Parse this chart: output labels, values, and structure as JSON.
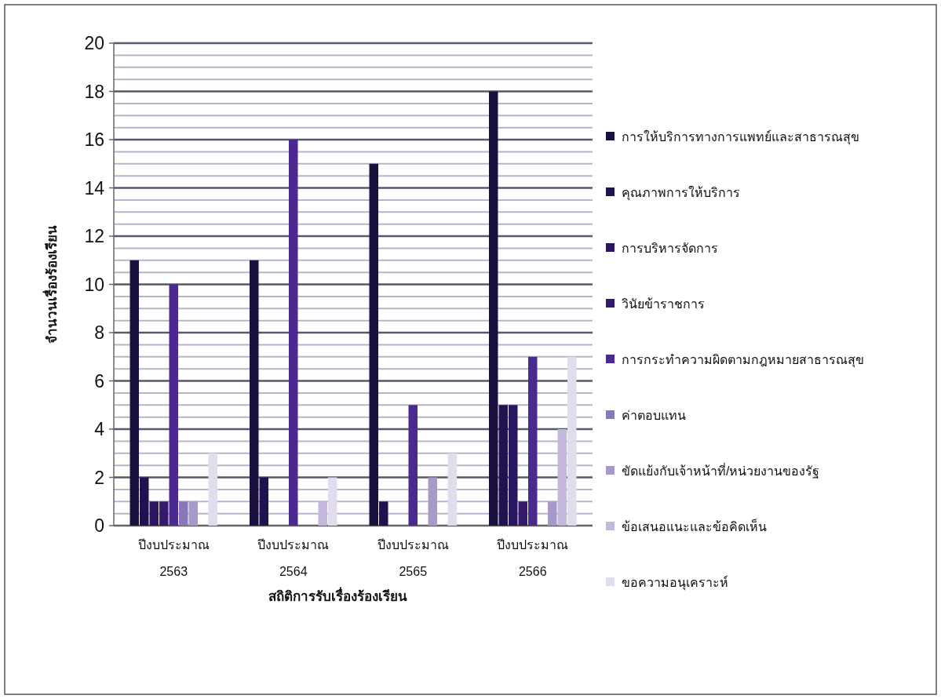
{
  "chart_data": {
    "type": "bar",
    "xlabel": "สถิติการรับเรื่องร้องเรียน",
    "ylabel": "จำนวนเรื่องร้องเรียน",
    "categories": [
      "ปีงบประมาณ\n2563",
      "ปีงบประมาณ\n2564",
      "ปีงบประมาณ\n2565",
      "ปีงบประมาณ\n2566"
    ],
    "ylim": [
      0,
      20
    ],
    "yticks": [
      0,
      2,
      4,
      6,
      8,
      10,
      12,
      14,
      16,
      18,
      20
    ],
    "grid": "y",
    "legend": "right",
    "series": [
      {
        "name": "การให้บริการทางการแพทย์และสาธารณสุข",
        "color": "#1a1040",
        "values": [
          11,
          11,
          15,
          18
        ]
      },
      {
        "name": "คุณภาพการให้บริการ",
        "color": "#20124e",
        "values": [
          2,
          2,
          1,
          5
        ]
      },
      {
        "name": "การบริหารจัดการ",
        "color": "#2a165e",
        "values": [
          1,
          0,
          0,
          5
        ]
      },
      {
        "name": "วินัยข้าราชการ",
        "color": "#34196e",
        "values": [
          1,
          0,
          0,
          1
        ]
      },
      {
        "name": "การกระทำความผิดตามกฎหมายสาธารณสุข",
        "color": "#4a2a90",
        "values": [
          10,
          16,
          5,
          7
        ]
      },
      {
        "name": "ค่าตอบแทน",
        "color": "#8878b8",
        "values": [
          1,
          0,
          0,
          0
        ]
      },
      {
        "name": "ขัดแย้งกับเจ้าหน้าที่/หน่วยงานของรัฐ",
        "color": "#a89ac8",
        "values": [
          1,
          0,
          2,
          1
        ]
      },
      {
        "name": "ข้อเสนอแนะและข้อคิดเห็น",
        "color": "#c4b8dc",
        "values": [
          0,
          1,
          0,
          4
        ]
      },
      {
        "name": "ขอความอนุเคราะห์",
        "color": "#e2ddec",
        "values": [
          3,
          2,
          3,
          7
        ]
      }
    ]
  }
}
